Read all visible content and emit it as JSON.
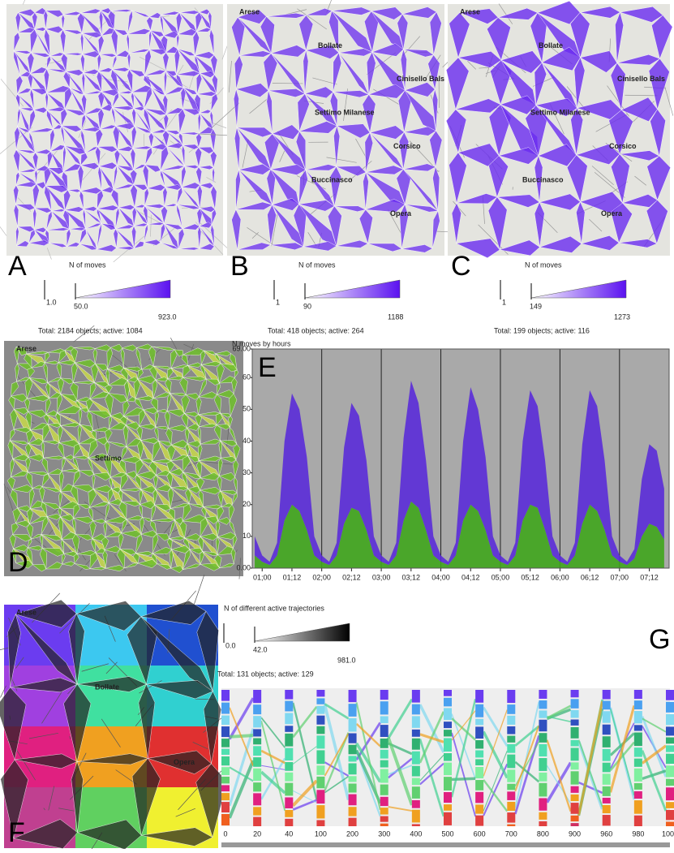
{
  "panels": {
    "A": {
      "label": "A",
      "legend": {
        "title": "N of moves",
        "min": "1.0",
        "mid": "50.0",
        "max": "923.0"
      },
      "total": "Total: 2184 objects; active: 1084"
    },
    "B": {
      "label": "B",
      "places": [
        "Arese",
        "Bollate",
        "Cinisello Bals",
        "Settimo Milanese",
        "Corsico",
        "Buccinasco",
        "Opera"
      ],
      "legend": {
        "title": "N of moves",
        "min": "1",
        "mid": "90",
        "max": "1188"
      },
      "total": "Total: 418 objects; active: 264"
    },
    "C": {
      "label": "C",
      "places": [
        "Arese",
        "Bollate",
        "Cinisello Bals",
        "Settimo Milanese",
        "Corsico",
        "Buccinasco",
        "Opera"
      ],
      "legend": {
        "title": "N of moves",
        "min": "1",
        "mid": "149",
        "max": "1273"
      },
      "total": "Total: 199 objects; active: 116"
    },
    "D": {
      "label": "D",
      "places": [
        "Arese",
        "Settimo"
      ]
    },
    "F": {
      "label": "F",
      "places": [
        "Arese",
        "Bollate",
        "Opera"
      ],
      "legend": {
        "title": "N of different active trajectories",
        "min": "0.0",
        "mid": "42.0",
        "max": "981.0"
      },
      "total": "Total: 131 objects; active: 129"
    },
    "G": {
      "label": "G",
      "categories": [
        "0",
        "20",
        "40",
        "100",
        "200",
        "300",
        "400",
        "500",
        "600",
        "700",
        "800",
        "900",
        "960",
        "980",
        "1000"
      ]
    }
  },
  "chart_data": {
    "type": "area",
    "label": "E",
    "title": "N moves by hours",
    "xlim": [
      -4,
      164
    ],
    "ylim": [
      0,
      69
    ],
    "yticks": [
      {
        "value": 0,
        "label": "0.00"
      },
      10,
      20,
      30,
      40,
      50,
      60,
      {
        "value": 69,
        "label": "69.00"
      }
    ],
    "xticks": [
      {
        "value": 0,
        "label": "01;00"
      },
      {
        "value": 12,
        "label": "01;12"
      },
      {
        "value": 24,
        "label": "02;00"
      },
      {
        "value": 36,
        "label": "02;12"
      },
      {
        "value": 48,
        "label": "03;00"
      },
      {
        "value": 60,
        "label": "03;12"
      },
      {
        "value": 72,
        "label": "04;00"
      },
      {
        "value": 84,
        "label": "04;12"
      },
      {
        "value": 96,
        "label": "05;00"
      },
      {
        "value": 108,
        "label": "05;12"
      },
      {
        "value": 120,
        "label": "06;00"
      },
      {
        "value": 132,
        "label": "06;12"
      },
      {
        "value": 144,
        "label": "07;00"
      },
      {
        "value": 156,
        "label": "07;12"
      }
    ],
    "x": [
      -3,
      0,
      3,
      6,
      9,
      12,
      15,
      18,
      21,
      24,
      27,
      30,
      33,
      36,
      39,
      42,
      45,
      48,
      51,
      54,
      57,
      60,
      63,
      66,
      69,
      72,
      75,
      78,
      81,
      84,
      87,
      90,
      93,
      96,
      99,
      102,
      105,
      108,
      111,
      114,
      117,
      120,
      123,
      126,
      129,
      132,
      135,
      138,
      141,
      144,
      147,
      150,
      153,
      156,
      159,
      162
    ],
    "series": [
      {
        "color": "#3fa51c",
        "values": [
          4,
          2,
          1,
          4,
          15,
          20,
          18,
          12,
          4,
          2,
          1,
          4,
          14,
          19,
          18,
          12,
          4,
          2,
          1,
          4,
          15,
          21,
          19,
          12,
          4,
          2,
          1,
          4,
          15,
          20,
          18,
          12,
          4,
          2,
          1,
          4,
          15,
          20,
          19,
          12,
          4,
          2,
          1,
          4,
          14,
          20,
          18,
          12,
          4,
          2,
          1,
          3,
          10,
          14,
          13,
          9
        ]
      },
      {
        "color": "#5a2bd8",
        "values": [
          6,
          2,
          1,
          4,
          25,
          35,
          32,
          23,
          6,
          2,
          1,
          4,
          24,
          33,
          30,
          22,
          6,
          2,
          1,
          4,
          26,
          38,
          33,
          22,
          6,
          2,
          1,
          4,
          25,
          37,
          32,
          23,
          6,
          2,
          1,
          4,
          25,
          36,
          32,
          22,
          6,
          2,
          1,
          4,
          25,
          36,
          33,
          22,
          6,
          2,
          1,
          3,
          18,
          25,
          24,
          16
        ]
      }
    ]
  }
}
